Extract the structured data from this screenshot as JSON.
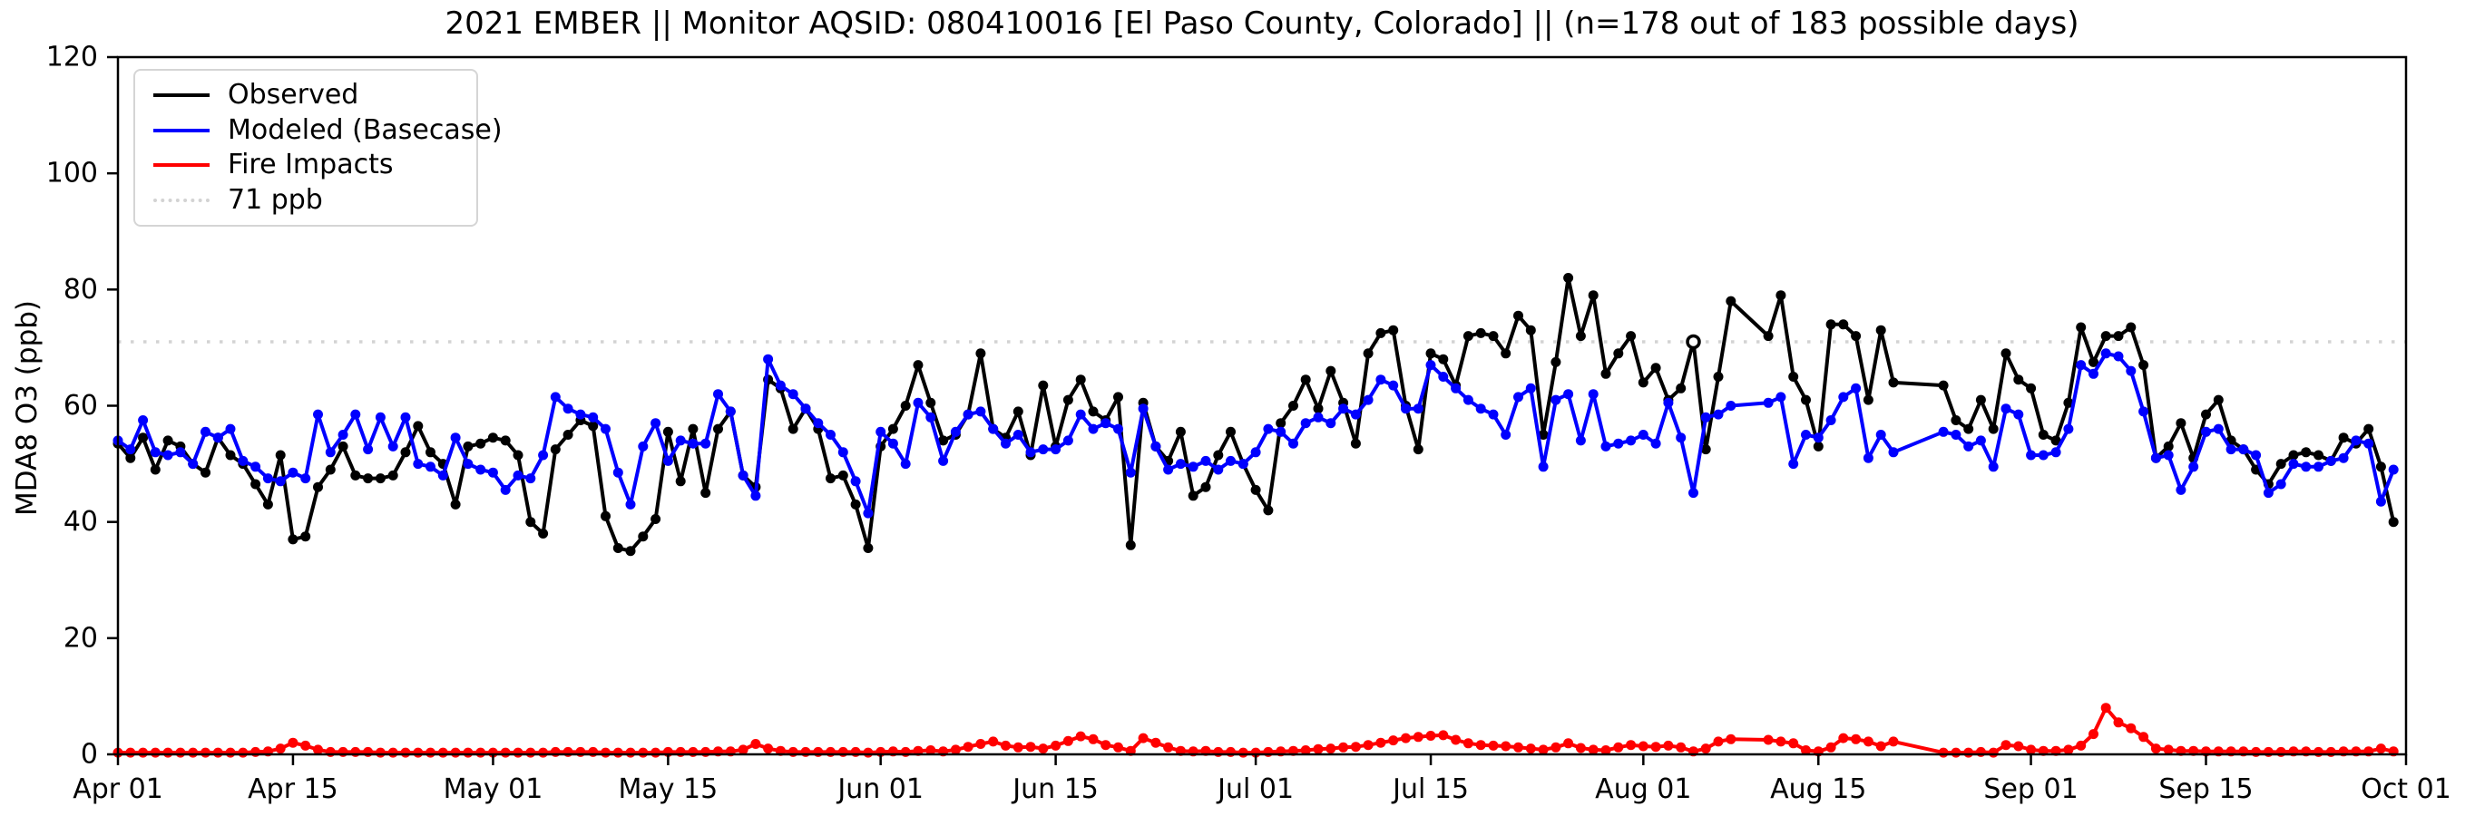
{
  "chart_data": {
    "type": "line",
    "title": "2021 EMBER || Monitor AQSID: 080410016 [El Paso County, Colorado] || (n=178 out of 183 possible days)",
    "xlabel": "",
    "ylabel": "MDA8 O3 (ppb)",
    "ylim": [
      0,
      120
    ],
    "yticks": [
      0,
      20,
      40,
      60,
      80,
      100,
      120
    ],
    "x_span_days": 183,
    "x_start_label": "Apr 01",
    "x_end_label": "Oct 01",
    "n_days_observed": 178,
    "n_days_possible": 183,
    "grid": false,
    "legend_position": "upper left",
    "xticks": [
      {
        "day": 0,
        "label": "Apr 01"
      },
      {
        "day": 14,
        "label": "Apr 15"
      },
      {
        "day": 30,
        "label": "May 01"
      },
      {
        "day": 44,
        "label": "May 15"
      },
      {
        "day": 61,
        "label": "Jun 01"
      },
      {
        "day": 75,
        "label": "Jun 15"
      },
      {
        "day": 91,
        "label": "Jul 01"
      },
      {
        "day": 105,
        "label": "Jul 15"
      },
      {
        "day": 122,
        "label": "Aug 01"
      },
      {
        "day": 136,
        "label": "Aug 15"
      },
      {
        "day": 153,
        "label": "Sep 01"
      },
      {
        "day": 167,
        "label": "Sep 15"
      },
      {
        "day": 183,
        "label": "Oct 01"
      }
    ],
    "threshold": {
      "value": 71,
      "label": "71 ppb",
      "color": "#d3d3d3",
      "style": "dotted"
    },
    "legend": [
      {
        "label": "Observed",
        "color": "#000000",
        "style": "solid"
      },
      {
        "label": "Modeled (Basecase)",
        "color": "#0000ff",
        "style": "solid"
      },
      {
        "label": "Fire Impacts",
        "color": "#ff0000",
        "style": "solid"
      },
      {
        "label": "71 ppb",
        "color": "#d3d3d3",
        "style": "dotted"
      }
    ],
    "series": [
      {
        "name": "Observed",
        "color": "#000000",
        "open_marker_days": [
          126
        ],
        "values": [
          53.5,
          51,
          54.5,
          49,
          54,
          53,
          50,
          48.5,
          54.5,
          51.5,
          50,
          46.5,
          43,
          51.5,
          37,
          37.5,
          46,
          49,
          53,
          48,
          47.5,
          47.5,
          48,
          52,
          56.5,
          52,
          50,
          43,
          53,
          53.5,
          54.5,
          54,
          51.5,
          40,
          38,
          52.5,
          55,
          57.5,
          56.5,
          41,
          35.5,
          35,
          37.5,
          40.5,
          55.5,
          47,
          56,
          45,
          56,
          59,
          48,
          46,
          64.5,
          63,
          56,
          59.5,
          56,
          47.5,
          48,
          43,
          35.5,
          53,
          56,
          60,
          67,
          60.5,
          54,
          55,
          58.5,
          69,
          56,
          54.5,
          59,
          51.5,
          63.5,
          53,
          61,
          64.5,
          59,
          57.5,
          61.5,
          36,
          60.5,
          53,
          50.5,
          55.5,
          44.5,
          46,
          51.5,
          55.5,
          50,
          45.5,
          42,
          57,
          60,
          64.5,
          59.5,
          66,
          60.5,
          53.5,
          69,
          72.5,
          73,
          60,
          52.5,
          69,
          68,
          63.5,
          72,
          72.5,
          72,
          69,
          75.5,
          73,
          55,
          67.5,
          82,
          72,
          79,
          65.5,
          69,
          72,
          64,
          66.5,
          61,
          63,
          71,
          52.5,
          65,
          78,
          null,
          null,
          72,
          79,
          65,
          61,
          53,
          74,
          74,
          72,
          61,
          73,
          64,
          null,
          null,
          null,
          63.5,
          57.5,
          56,
          61,
          56,
          69,
          64.5,
          63,
          55,
          54,
          60.5,
          73.5,
          67.5,
          72,
          72,
          73.5,
          67,
          51,
          53,
          57,
          51,
          58.5,
          61,
          54,
          52.5,
          49,
          46.5,
          50,
          51.5,
          52,
          51.5,
          50.5,
          54.5,
          53.5,
          56,
          49.5,
          40
        ]
      },
      {
        "name": "Modeled (Basecase)",
        "color": "#0000ff",
        "open_marker_days": [],
        "values": [
          54,
          52.5,
          57.5,
          52,
          51.5,
          52,
          50,
          55.5,
          54.5,
          56,
          50.5,
          49.5,
          47.5,
          47,
          48.5,
          47.5,
          58.5,
          52,
          55,
          58.5,
          52.5,
          58,
          53,
          58,
          50,
          49.5,
          48,
          54.5,
          50,
          49,
          48.5,
          45.5,
          48,
          47.5,
          51.5,
          61.5,
          59.5,
          58.5,
          58,
          56,
          48.5,
          43,
          53,
          57,
          50.5,
          54,
          53.5,
          53.5,
          62,
          59,
          48,
          44.5,
          68,
          63.5,
          62,
          59.5,
          57,
          55,
          52,
          47,
          41.5,
          55.5,
          53.5,
          50,
          60.5,
          58,
          50.5,
          55.5,
          58.5,
          59,
          56,
          53.5,
          55,
          52,
          52.5,
          52.5,
          54,
          58.5,
          56,
          57,
          56,
          48.5,
          59.5,
          53,
          49,
          50,
          49.5,
          50.5,
          49,
          50.5,
          50,
          52,
          56,
          55.5,
          53.5,
          57,
          58,
          57,
          59.5,
          58.5,
          61,
          64.5,
          63.5,
          59.5,
          59.5,
          67,
          65,
          63,
          61,
          59.5,
          58.5,
          55,
          61.5,
          63,
          49.5,
          61,
          62,
          54,
          62,
          53,
          53.5,
          54,
          55,
          53.5,
          60.5,
          54.5,
          45,
          58,
          58.5,
          60,
          null,
          null,
          60.5,
          61.5,
          50,
          55,
          54.5,
          57.5,
          61.5,
          63,
          51,
          55,
          52,
          null,
          null,
          null,
          55.5,
          55,
          53,
          54,
          49.5,
          59.5,
          58.5,
          51.5,
          51.5,
          52,
          56,
          67,
          65.5,
          69,
          68.5,
          66,
          59,
          51,
          51.5,
          45.5,
          49.5,
          55.5,
          56,
          52.5,
          52.5,
          51.5,
          45,
          46.5,
          50,
          49.5,
          49.5,
          50.5,
          51,
          54,
          53.5,
          43.5,
          49
        ]
      },
      {
        "name": "Fire Impacts",
        "color": "#ff0000",
        "open_marker_days": [],
        "values": [
          0.3,
          0.3,
          0.3,
          0.3,
          0.3,
          0.3,
          0.3,
          0.3,
          0.3,
          0.3,
          0.3,
          0.4,
          0.5,
          1,
          2,
          1.5,
          0.8,
          0.4,
          0.4,
          0.4,
          0.4,
          0.3,
          0.3,
          0.3,
          0.3,
          0.3,
          0.3,
          0.3,
          0.3,
          0.3,
          0.3,
          0.3,
          0.3,
          0.3,
          0.3,
          0.4,
          0.4,
          0.4,
          0.4,
          0.3,
          0.3,
          0.3,
          0.3,
          0.3,
          0.4,
          0.4,
          0.4,
          0.4,
          0.5,
          0.5,
          0.8,
          1.8,
          1,
          0.6,
          0.4,
          0.4,
          0.4,
          0.4,
          0.4,
          0.4,
          0.3,
          0.4,
          0.5,
          0.4,
          0.6,
          0.7,
          0.5,
          0.8,
          1.3,
          1.8,
          2.2,
          1.5,
          1.2,
          1.3,
          1,
          1.5,
          2.3,
          3.1,
          2.6,
          1.6,
          1.2,
          0.6,
          2.8,
          2,
          1.2,
          0.6,
          0.5,
          0.6,
          0.4,
          0.4,
          0.3,
          0.3,
          0.4,
          0.5,
          0.6,
          0.7,
          0.9,
          1,
          1.2,
          1.3,
          1.6,
          2,
          2.4,
          2.8,
          3,
          3.2,
          3.3,
          2.5,
          1.9,
          1.6,
          1.5,
          1.4,
          1.2,
          1,
          0.8,
          1.2,
          1.9,
          1.1,
          0.8,
          0.7,
          1.2,
          1.6,
          1.4,
          1.3,
          1.5,
          1.2,
          0.5,
          1,
          2.2,
          2.6,
          null,
          null,
          2.5,
          2.2,
          1.9,
          0.7,
          0.5,
          1.2,
          2.8,
          2.6,
          2.2,
          1.4,
          2.2,
          null,
          null,
          null,
          0.3,
          0.3,
          0.3,
          0.4,
          0.3,
          1.6,
          1.4,
          0.8,
          0.6,
          0.6,
          0.8,
          1.5,
          3.5,
          8,
          5.5,
          4.5,
          3,
          1,
          0.8,
          0.6,
          0.6,
          0.5,
          0.5,
          0.5,
          0.5,
          0.4,
          0.4,
          0.4,
          0.5,
          0.5,
          0.4,
          0.4,
          0.5,
          0.5,
          0.5,
          1,
          0.5
        ]
      }
    ]
  }
}
